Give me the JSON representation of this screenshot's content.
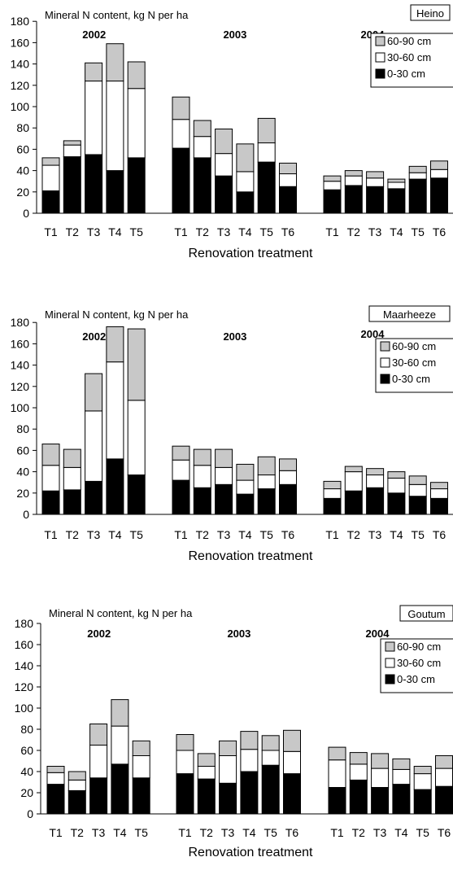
{
  "chart_data": [
    {
      "type": "bar",
      "stacked": true,
      "site_label": "Heino",
      "ylabel": "Mineral N content, kg N per ha",
      "xlabel": "Renovation treatment",
      "ylim": [
        0,
        180
      ],
      "yticks": [
        0,
        20,
        40,
        60,
        80,
        100,
        120,
        140,
        160,
        180
      ],
      "grid": false,
      "legend_position": "top-right",
      "series_names": [
        "60-90 cm",
        "30-60 cm",
        "0-30 cm"
      ],
      "series_colors": {
        "0-30 cm": "#000000",
        "30-60 cm": "#ffffff",
        "60-90 cm": "#c8c8c8"
      },
      "groups": [
        {
          "year": "2002",
          "categories": [
            "T1",
            "T2",
            "T3",
            "T4",
            "T5"
          ],
          "series": [
            {
              "name": "0-30 cm",
              "values": [
                21,
                53,
                55,
                40,
                52
              ]
            },
            {
              "name": "30-60 cm",
              "values": [
                24,
                11,
                69,
                84,
                65
              ]
            },
            {
              "name": "60-90 cm",
              "values": [
                7,
                4,
                17,
                35,
                25
              ]
            }
          ]
        },
        {
          "year": "2003",
          "categories": [
            "T1",
            "T2",
            "T3",
            "T4",
            "T5",
            "T6"
          ],
          "series": [
            {
              "name": "0-30 cm",
              "values": [
                61,
                52,
                35,
                20,
                48,
                25
              ]
            },
            {
              "name": "30-60 cm",
              "values": [
                27,
                20,
                21,
                19,
                18,
                12
              ]
            },
            {
              "name": "60-90 cm",
              "values": [
                21,
                15,
                23,
                26,
                23,
                10
              ]
            }
          ]
        },
        {
          "year": "2004",
          "categories": [
            "T1",
            "T2",
            "T3",
            "T4",
            "T5",
            "T6"
          ],
          "series": [
            {
              "name": "0-30 cm",
              "values": [
                22,
                26,
                25,
                23,
                32,
                33
              ]
            },
            {
              "name": "30-60 cm",
              "values": [
                8,
                9,
                8,
                6,
                6,
                8
              ]
            },
            {
              "name": "60-90 cm",
              "values": [
                5,
                5,
                6,
                3,
                6,
                8
              ]
            }
          ]
        }
      ]
    },
    {
      "type": "bar",
      "stacked": true,
      "site_label": "Maarheeze",
      "ylabel": "Mineral N content, kg N per ha",
      "xlabel": "Renovation treatment",
      "ylim": [
        0,
        180
      ],
      "yticks": [
        0,
        20,
        40,
        60,
        80,
        100,
        120,
        140,
        160,
        180
      ],
      "grid": false,
      "legend_position": "top-right",
      "series_names": [
        "60-90 cm",
        "30-60 cm",
        "0-30 cm"
      ],
      "series_colors": {
        "0-30 cm": "#000000",
        "30-60 cm": "#ffffff",
        "60-90 cm": "#c8c8c8"
      },
      "groups": [
        {
          "year": "2002",
          "categories": [
            "T1",
            "T2",
            "T3",
            "T4",
            "T5"
          ],
          "series": [
            {
              "name": "0-30 cm",
              "values": [
                22,
                23,
                31,
                52,
                37
              ]
            },
            {
              "name": "30-60 cm",
              "values": [
                24,
                21,
                66,
                91,
                70
              ]
            },
            {
              "name": "60-90 cm",
              "values": [
                20,
                17,
                35,
                33,
                67
              ]
            }
          ]
        },
        {
          "year": "2003",
          "categories": [
            "T1",
            "T2",
            "T3",
            "T4",
            "T5",
            "T6"
          ],
          "series": [
            {
              "name": "0-30 cm",
              "values": [
                32,
                25,
                28,
                19,
                24,
                28
              ]
            },
            {
              "name": "30-60 cm",
              "values": [
                19,
                21,
                16,
                13,
                13,
                13
              ]
            },
            {
              "name": "60-90 cm",
              "values": [
                13,
                15,
                17,
                15,
                17,
                11
              ]
            }
          ]
        },
        {
          "year": "2004",
          "categories": [
            "T1",
            "T2",
            "T3",
            "T4",
            "T5",
            "T6"
          ],
          "series": [
            {
              "name": "0-30 cm",
              "values": [
                15,
                22,
                25,
                20,
                17,
                15
              ]
            },
            {
              "name": "30-60 cm",
              "values": [
                9,
                18,
                12,
                14,
                11,
                9
              ]
            },
            {
              "name": "60-90 cm",
              "values": [
                7,
                5,
                6,
                6,
                8,
                6
              ]
            }
          ]
        }
      ]
    },
    {
      "type": "bar",
      "stacked": true,
      "site_label": "Goutum",
      "ylabel": "Mineral N content, kg N per ha",
      "xlabel": "Renovation treatment",
      "ylim": [
        0,
        180
      ],
      "yticks": [
        0,
        20,
        40,
        60,
        80,
        100,
        120,
        140,
        160,
        180
      ],
      "grid": false,
      "legend_position": "top-right",
      "series_names": [
        "60-90 cm",
        "30-60 cm",
        "0-30 cm"
      ],
      "series_colors": {
        "0-30 cm": "#000000",
        "30-60 cm": "#ffffff",
        "60-90 cm": "#c8c8c8"
      },
      "groups": [
        {
          "year": "2002",
          "categories": [
            "T1",
            "T2",
            "T3",
            "T4",
            "T5"
          ],
          "series": [
            {
              "name": "0-30 cm",
              "values": [
                28,
                22,
                34,
                47,
                34
              ]
            },
            {
              "name": "30-60 cm",
              "values": [
                11,
                10,
                31,
                36,
                21
              ]
            },
            {
              "name": "60-90 cm",
              "values": [
                6,
                8,
                20,
                25,
                14
              ]
            }
          ]
        },
        {
          "year": "2003",
          "categories": [
            "T1",
            "T2",
            "T3",
            "T4",
            "T5",
            "T6"
          ],
          "series": [
            {
              "name": "0-30 cm",
              "values": [
                38,
                33,
                29,
                40,
                46,
                38
              ]
            },
            {
              "name": "30-60 cm",
              "values": [
                22,
                12,
                26,
                21,
                14,
                21
              ]
            },
            {
              "name": "60-90 cm",
              "values": [
                15,
                12,
                14,
                17,
                14,
                20
              ]
            }
          ]
        },
        {
          "year": "2004",
          "categories": [
            "T1",
            "T2",
            "T3",
            "T4",
            "T5",
            "T6"
          ],
          "series": [
            {
              "name": "0-30 cm",
              "values": [
                25,
                32,
                25,
                28,
                23,
                26
              ]
            },
            {
              "name": "30-60 cm",
              "values": [
                26,
                15,
                18,
                14,
                15,
                17
              ]
            },
            {
              "name": "60-90 cm",
              "values": [
                12,
                11,
                14,
                10,
                7,
                12
              ]
            }
          ]
        }
      ]
    }
  ]
}
